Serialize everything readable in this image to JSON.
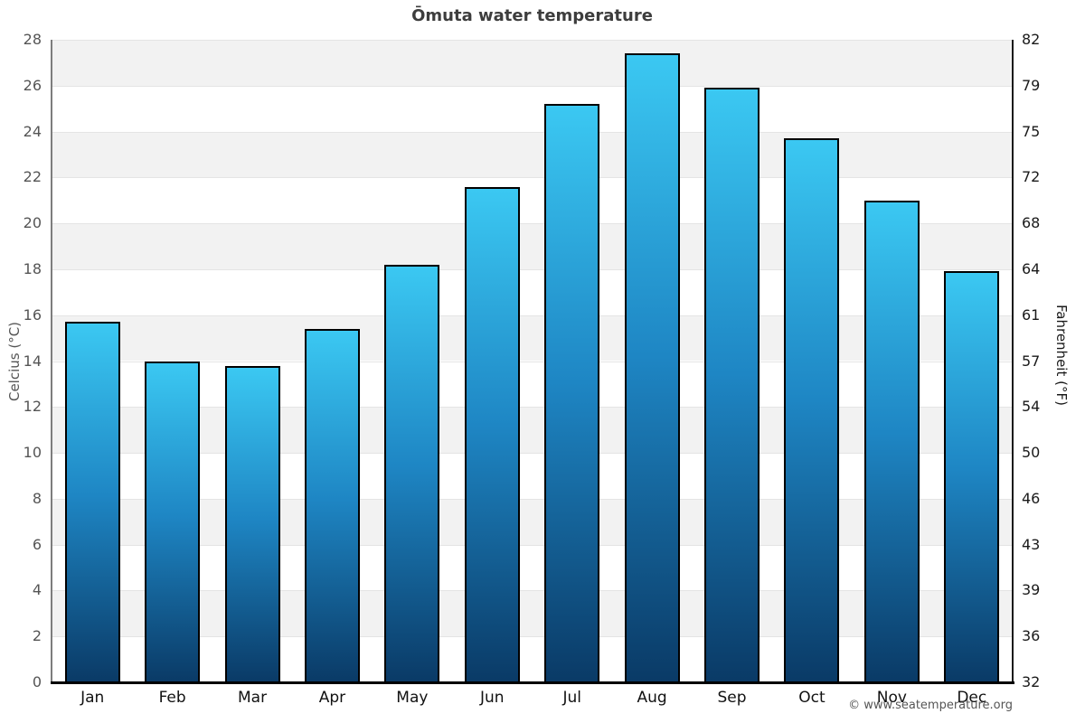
{
  "title": "Ōmuta water temperature",
  "footer": "© www.seatemperature.org",
  "axes": {
    "left_label": "Celcius (°C)",
    "right_label": "Fahrenheit (°F)",
    "left_ticks": [
      28,
      26,
      24,
      22,
      20,
      18,
      16,
      14,
      12,
      10,
      8,
      6,
      4,
      2,
      0
    ],
    "right_ticks": [
      82,
      79,
      75,
      72,
      68,
      64,
      61,
      57,
      54,
      50,
      46,
      43,
      39,
      36,
      32
    ]
  },
  "chart_data": {
    "type": "bar",
    "title": "Ōmuta water temperature",
    "categories": [
      "Jan",
      "Feb",
      "Mar",
      "Apr",
      "May",
      "Jun",
      "Jul",
      "Aug",
      "Sep",
      "Oct",
      "Nov",
      "Dec"
    ],
    "values": [
      15.7,
      14.0,
      13.8,
      15.4,
      18.2,
      21.6,
      25.2,
      27.4,
      25.9,
      23.7,
      21.0,
      17.9
    ],
    "xlabel": "",
    "ylabel": "Celcius (°C)",
    "ylabel_right": "Fahrenheit (°F)",
    "ylim": [
      0,
      28
    ],
    "ytick_step": 2,
    "fahrenheit_tick_labels": [
      82,
      79,
      75,
      72,
      68,
      64,
      61,
      57,
      54,
      50,
      46,
      43,
      39,
      36,
      32
    ],
    "grid": "horizontal-bands-alternating",
    "legend": "none",
    "colors": {
      "bar_gradient_top": "#3bc8f2",
      "bar_gradient_mid": "#1e86c4",
      "bar_gradient_bottom": "#0a3a66",
      "bar_border": "#000000",
      "band_gray": "#f2f2f2",
      "band_white": "#ffffff",
      "gridline": "#e4e4e4",
      "axis_baseline": "#000000",
      "title_color": "#3d3d3d",
      "left_tick_color": "#555555",
      "right_tick_color": "#1a1a1a"
    }
  }
}
